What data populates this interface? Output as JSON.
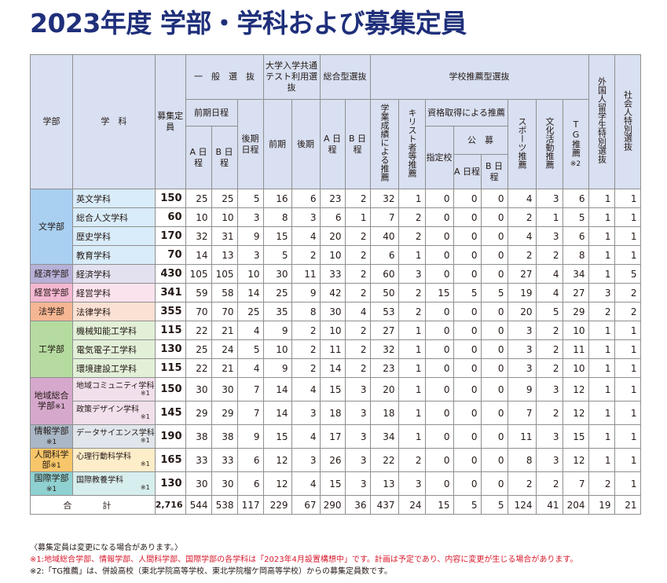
{
  "title": "2023年度 学部・学科および募集定員",
  "header": {
    "gakubu": "学部",
    "gakka": "学　科",
    "boshu": "募集定員",
    "ippan": "一　般　選　抜",
    "zenki": "前期日程",
    "a_nittei": "A 日程",
    "b_nittei": "B 日程",
    "kouki": "後期日程",
    "kyoutsu": "大学入学共通テスト利用選抜",
    "kyoutsu_zenki": "前期",
    "kyoutsu_kouki": "後期",
    "sougou": "総合型選抜",
    "sougou_a": "A 日程",
    "sougou_b": "B 日程",
    "suisen": "学校推薦型選抜",
    "seiseki": "学業成績による推薦",
    "kirisuto": "キリスト者等推薦",
    "shikaku": "資格取得による推薦",
    "shitei": "指定校",
    "koubo": "公　募",
    "koubo_a": "A 日程",
    "koubo_b": "B 日程",
    "sports": "スポーツ推薦",
    "bunka": "文化活動推薦",
    "tg": "TG推薦",
    "tg_note": "※2",
    "gaikoku": "外国人留学生特別選抜",
    "shakaijin": "社会人特別選抜"
  },
  "departments": [
    {
      "name": "文学部",
      "color": "#d9ecf9",
      "rows": [
        {
          "subject": "英文学科",
          "note": "",
          "vals": [
            "150",
            "25",
            "25",
            "5",
            "16",
            "6",
            "23",
            "2",
            "32",
            "1",
            "0",
            "0",
            "0",
            "4",
            "3",
            "6",
            "1",
            "1"
          ]
        },
        {
          "subject": "総合人文学科",
          "note": "",
          "vals": [
            "60",
            "10",
            "10",
            "3",
            "8",
            "3",
            "6",
            "1",
            "7",
            "2",
            "0",
            "0",
            "0",
            "2",
            "1",
            "5",
            "1",
            "1"
          ]
        },
        {
          "subject": "歴史学科",
          "note": "",
          "vals": [
            "170",
            "32",
            "31",
            "9",
            "15",
            "4",
            "20",
            "2",
            "40",
            "2",
            "0",
            "0",
            "0",
            "4",
            "3",
            "6",
            "1",
            "1"
          ]
        },
        {
          "subject": "教育学科",
          "note": "",
          "vals": [
            "70",
            "14",
            "13",
            "3",
            "5",
            "2",
            "10",
            "2",
            "6",
            "1",
            "0",
            "0",
            "0",
            "2",
            "2",
            "8",
            "1",
            "1"
          ]
        }
      ]
    },
    {
      "name": "経済学部",
      "color": "#e3e1f0",
      "rows": [
        {
          "subject": "経済学科",
          "note": "",
          "vals": [
            "430",
            "105",
            "105",
            "10",
            "30",
            "11",
            "33",
            "2",
            "60",
            "3",
            "0",
            "0",
            "0",
            "27",
            "4",
            "34",
            "1",
            "5"
          ]
        }
      ]
    },
    {
      "name": "経営学部",
      "color": "#fbe3ee",
      "rows": [
        {
          "subject": "経営学科",
          "note": "",
          "vals": [
            "341",
            "59",
            "58",
            "14",
            "25",
            "9",
            "42",
            "2",
            "50",
            "2",
            "15",
            "5",
            "5",
            "19",
            "4",
            "27",
            "3",
            "2"
          ]
        }
      ]
    },
    {
      "name": "法学部",
      "color": "#fbe1d3",
      "rows": [
        {
          "subject": "法律学科",
          "note": "",
          "vals": [
            "355",
            "70",
            "70",
            "25",
            "35",
            "8",
            "30",
            "4",
            "53",
            "2",
            "0",
            "0",
            "0",
            "20",
            "5",
            "29",
            "2",
            "2"
          ]
        }
      ]
    },
    {
      "name": "工学部",
      "color": "#e2f0d8",
      "rows": [
        {
          "subject": "機械知能工学科",
          "note": "",
          "vals": [
            "115",
            "22",
            "21",
            "4",
            "9",
            "2",
            "10",
            "2",
            "27",
            "1",
            "0",
            "0",
            "0",
            "3",
            "2",
            "10",
            "1",
            "1"
          ]
        },
        {
          "subject": "電気電子工学科",
          "note": "",
          "vals": [
            "130",
            "25",
            "24",
            "5",
            "10",
            "2",
            "11",
            "2",
            "32",
            "1",
            "0",
            "0",
            "0",
            "3",
            "2",
            "11",
            "1",
            "1"
          ]
        },
        {
          "subject": "環境建設工学科",
          "note": "",
          "vals": [
            "115",
            "22",
            "21",
            "4",
            "9",
            "2",
            "14",
            "2",
            "23",
            "1",
            "0",
            "0",
            "0",
            "3",
            "2",
            "10",
            "1",
            "1"
          ]
        }
      ]
    },
    {
      "name": "地域総合学部",
      "note": "※1",
      "color": "#f1e0ec",
      "rows": [
        {
          "subject": "地域コミュニティ学科",
          "note": "※1",
          "vals": [
            "150",
            "30",
            "30",
            "7",
            "14",
            "4",
            "15",
            "3",
            "20",
            "1",
            "0",
            "0",
            "0",
            "9",
            "3",
            "12",
            "1",
            "1"
          ]
        },
        {
          "subject": "政策デザイン学科",
          "note": "※1",
          "vals": [
            "145",
            "29",
            "29",
            "7",
            "14",
            "3",
            "18",
            "3",
            "18",
            "1",
            "0",
            "0",
            "0",
            "7",
            "2",
            "12",
            "1",
            "1"
          ]
        }
      ]
    },
    {
      "name": "情報学部",
      "note": "※1",
      "color": "#e0e6ec",
      "rows": [
        {
          "subject": "データサイエンス学科",
          "note": "※1",
          "vals": [
            "190",
            "38",
            "38",
            "9",
            "15",
            "4",
            "17",
            "3",
            "34",
            "1",
            "0",
            "0",
            "0",
            "11",
            "3",
            "15",
            "1",
            "1"
          ]
        }
      ]
    },
    {
      "name": "人間科学部",
      "note": "※1",
      "color": "#fdedc9",
      "rows": [
        {
          "subject": "心理行動科学科",
          "note": "※1",
          "vals": [
            "165",
            "33",
            "33",
            "6",
            "12",
            "3",
            "26",
            "3",
            "22",
            "2",
            "0",
            "0",
            "0",
            "8",
            "3",
            "12",
            "1",
            "1"
          ]
        }
      ]
    },
    {
      "name": "国際学部",
      "note": "※1",
      "color": "#d7eeee",
      "rows": [
        {
          "subject": "国際教養学科",
          "note": "※1",
          "vals": [
            "130",
            "30",
            "30",
            "6",
            "12",
            "4",
            "15",
            "3",
            "13",
            "3",
            "0",
            "0",
            "0",
            "2",
            "2",
            "7",
            "2",
            "1"
          ]
        }
      ]
    }
  ],
  "colors": {
    "文学部": "#a9d0f0",
    "経済学部": "#b7b1d8",
    "経営学部": "#f4b8d1",
    "法学部": "#f5b693",
    "工学部": "#b5dba0",
    "地域総合学部": "#d6a9cc",
    "情報学部": "#a9b7c6",
    "人間科学部": "#f7c66a",
    "国際学部": "#8fd0d0"
  },
  "total": {
    "label": "合　計",
    "vals": [
      "2,716",
      "544",
      "538",
      "117",
      "229",
      "67",
      "290",
      "36",
      "437",
      "24",
      "15",
      "5",
      "5",
      "124",
      "41",
      "204",
      "19",
      "21"
    ]
  },
  "notes": {
    "line1": "〈募集定員は変更になる場合があります。〉",
    "line2": "※1:地域総合学部、情報学部、人間科学部、国際学部の各学科は「2023年4月設置構想中」です。計画は予定であり、内容に変更が生じる場合があります。",
    "line3": "※2:「TG推薦」は、併設高校（東北学院高等学校、東北学院榴ケ岡高等学校）からの募集定員数です。"
  }
}
